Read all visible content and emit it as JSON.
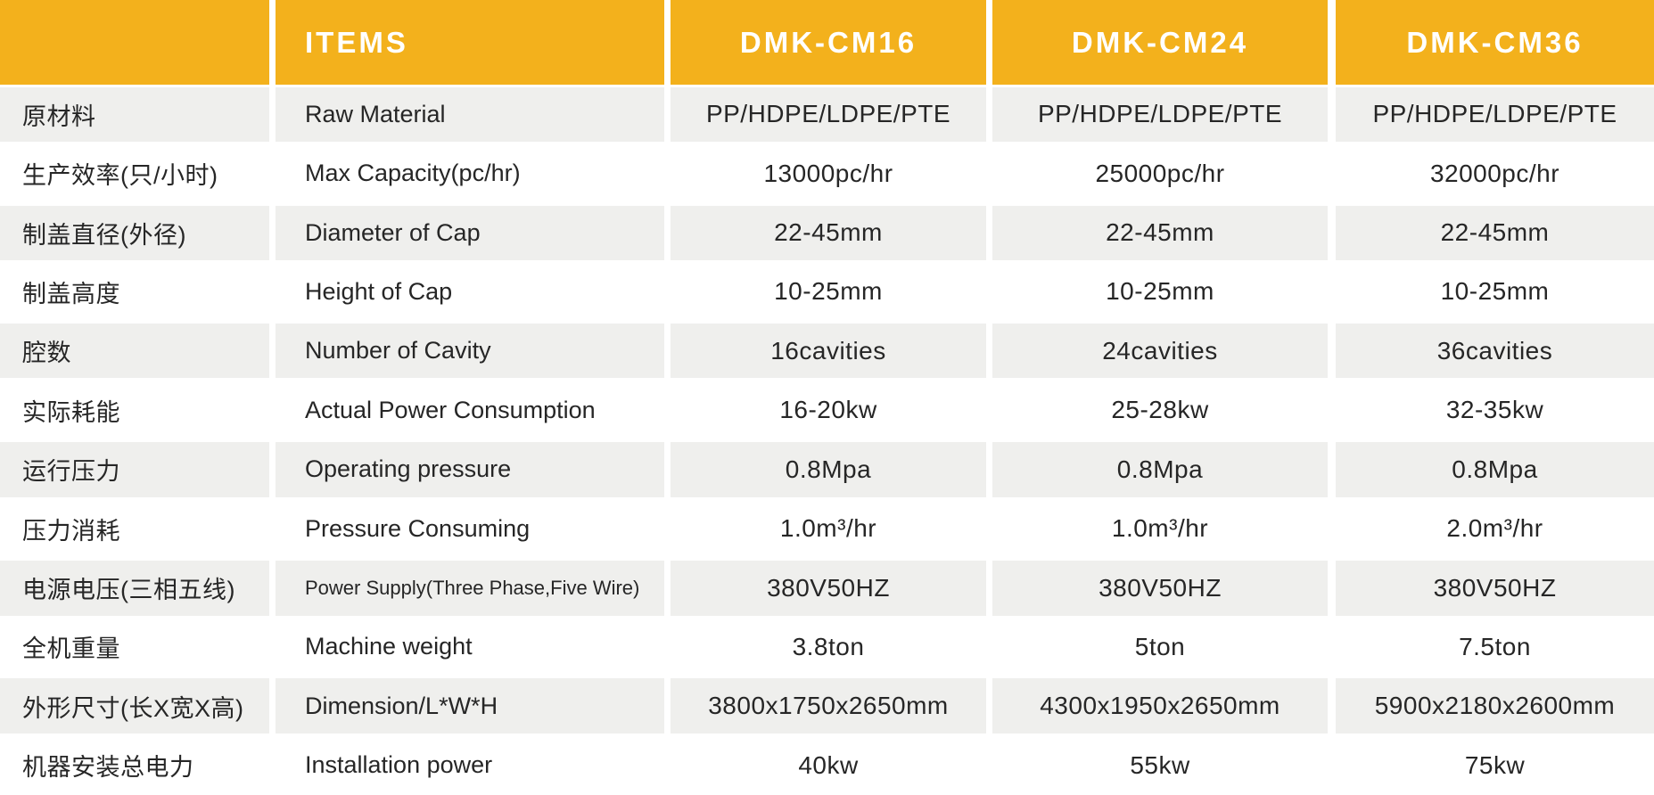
{
  "table": {
    "colors": {
      "header_bg": "#F3B11C",
      "header_text": "#FFFFFF",
      "row_alt_bg": "#EFEFED",
      "body_text": "#262626",
      "separator": "#FFFFFF"
    },
    "header": {
      "blank": "",
      "items_label": "ITEMS",
      "models": [
        "DMK-CM16",
        "DMK-CM24",
        "DMK-CM36"
      ]
    },
    "rows": [
      {
        "cn": "原材料",
        "en": "Raw Material",
        "values": [
          "PP/HDPE/LDPE/PTE",
          "PP/HDPE/LDPE/PTE",
          "PP/HDPE/LDPE/PTE"
        ]
      },
      {
        "cn": "生产效率(只/小时)",
        "en": "Max Capacity(pc/hr)",
        "values": [
          "13000pc/hr",
          "25000pc/hr",
          "32000pc/hr"
        ]
      },
      {
        "cn": "制盖直径(外径)",
        "en": "Diameter of Cap",
        "values": [
          "22-45mm",
          "22-45mm",
          "22-45mm"
        ]
      },
      {
        "cn": "制盖高度",
        "en": "Height of Cap",
        "values": [
          "10-25mm",
          "10-25mm",
          "10-25mm"
        ]
      },
      {
        "cn": "腔数",
        "en": "Number of Cavity",
        "values": [
          "16cavities",
          "24cavities",
          "36cavities"
        ]
      },
      {
        "cn": "实际耗能",
        "en": "Actual Power Consumption",
        "values": [
          "16-20kw",
          "25-28kw",
          "32-35kw"
        ]
      },
      {
        "cn": "运行压力",
        "en": "Operating pressure",
        "values": [
          "0.8Mpa",
          "0.8Mpa",
          "0.8Mpa"
        ]
      },
      {
        "cn": "压力消耗",
        "en": "Pressure Consuming",
        "values": [
          "1.0m³/hr",
          "1.0m³/hr",
          "2.0m³/hr"
        ]
      },
      {
        "cn": "电源电压(三相五线)",
        "en": "Power Supply(Three Phase,Five Wire)",
        "values": [
          "380V50HZ",
          "380V50HZ",
          "380V50HZ"
        ]
      },
      {
        "cn": "全机重量",
        "en": "Machine weight",
        "values": [
          "3.8ton",
          "5ton",
          "7.5ton"
        ]
      },
      {
        "cn": "外形尺寸(长X宽X高)",
        "en": "Dimension/L*W*H",
        "values": [
          "3800x1750x2650mm",
          "4300x1950x2650mm",
          "5900x2180x2600mm"
        ]
      },
      {
        "cn": "机器安装总电力",
        "en": "Installation power",
        "values": [
          "40kw",
          "55kw",
          "75kw"
        ]
      }
    ]
  }
}
